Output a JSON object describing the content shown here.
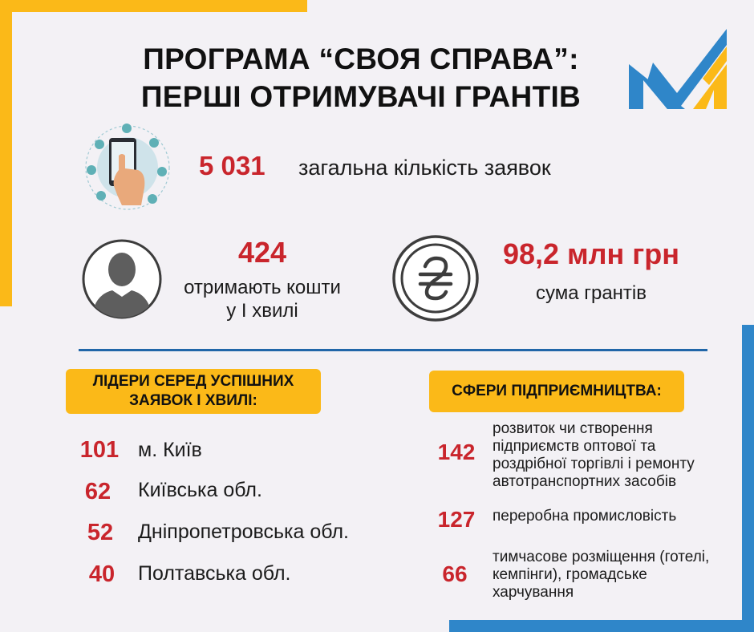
{
  "title": {
    "line1": "ПРОГРАМА “СВОЯ СПРАВА”:",
    "line2": "ПЕРШІ ОТРИМУВАЧІ ГРАНТІВ"
  },
  "logo": {
    "icon": "stylized-m-logo",
    "colors": [
      "#2f86c9",
      "#fbb918"
    ]
  },
  "stats": {
    "total": {
      "value": "5 031",
      "label": "загальна кількість заявок",
      "icon": "smartphone-hand-icon"
    },
    "recipients": {
      "value": "424",
      "label_line1": "отримають кошти",
      "label_line2": "у І хвилі",
      "icon": "person-silhouette-icon"
    },
    "grants": {
      "value": "98,2 млн грн",
      "label": "сума грантів",
      "icon": "hryvnia-coin-icon"
    }
  },
  "leaders": {
    "heading_line1": "ЛІДЕРИ СЕРЕД УСПІШНИХ",
    "heading_line2": "ЗАЯВОК І ХВИЛІ:",
    "items": [
      {
        "count": "101",
        "region": "м. Київ"
      },
      {
        "count": "62",
        "region": "Київська обл."
      },
      {
        "count": "52",
        "region": "Дніпропетровська обл."
      },
      {
        "count": "40",
        "region": "Полтавська обл."
      }
    ]
  },
  "sectors": {
    "heading": "СФЕРИ ПІДПРИЄМНИЦТВА:",
    "items": [
      {
        "count": "142",
        "text": "розвиток чи створення\nпідприємств оптової та\nроздрібної торгівлі і ремонту\nавтотранспортних засобів"
      },
      {
        "count": "127",
        "text": "переробна промисловість"
      },
      {
        "count": "66",
        "text": "тимчасове розміщення (готелі,\nкемпінги), громадське\nхарчування"
      }
    ]
  },
  "colors": {
    "accent_red": "#c9252c",
    "yellow": "#fbb918",
    "blue": "#2f86c9",
    "divider": "#2066a8"
  }
}
